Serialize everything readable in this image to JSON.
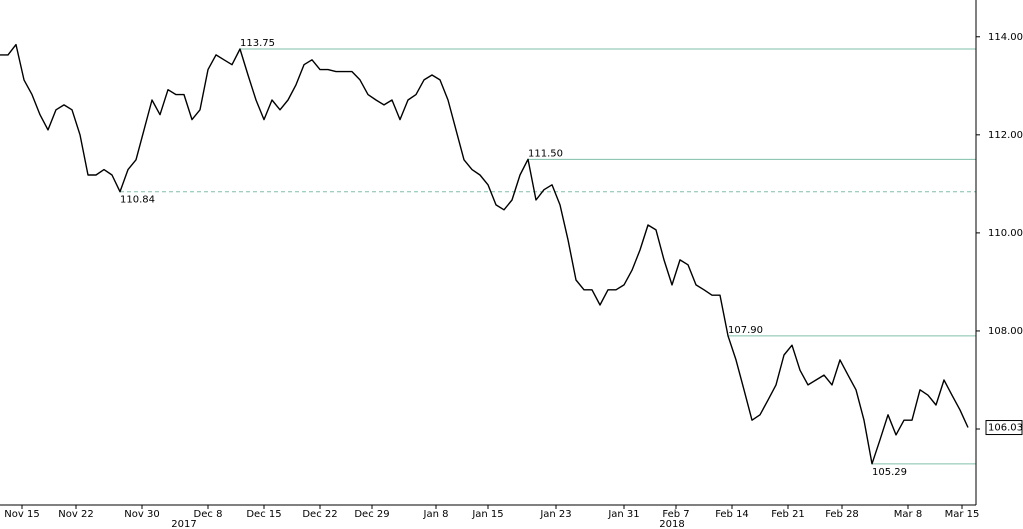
{
  "chart_data": {
    "type": "line",
    "series": [
      {
        "color": "#000000",
        "x": [
          0,
          1,
          2,
          3,
          4,
          5,
          6,
          7,
          8,
          9,
          10,
          11,
          12,
          13,
          14,
          15,
          16,
          17,
          18,
          19,
          20,
          21,
          22,
          23,
          24,
          25,
          26,
          27,
          28,
          29,
          30,
          31,
          32,
          33,
          34,
          35,
          36,
          37,
          38,
          39,
          40,
          41,
          42,
          43,
          44,
          45,
          46,
          47,
          48,
          49,
          50,
          51,
          52,
          53,
          54,
          55,
          56,
          57,
          58,
          59,
          60,
          61,
          62,
          63,
          64,
          65,
          66,
          67,
          68,
          69,
          70,
          71,
          72,
          73,
          74,
          75,
          76,
          77,
          78,
          79,
          80,
          81,
          82,
          83,
          84,
          85,
          86,
          87,
          88,
          89,
          90,
          91,
          92,
          93,
          94,
          95,
          96,
          97,
          98,
          99,
          100,
          101,
          102,
          103,
          104,
          105,
          106,
          107,
          108,
          109,
          110,
          111,
          112,
          113,
          114,
          115,
          116,
          117,
          118,
          119,
          120,
          121
        ],
        "values": [
          113.63,
          113.63,
          113.84,
          113.12,
          112.82,
          112.41,
          112.1,
          112.51,
          112.61,
          112.51,
          112.0,
          111.18,
          111.18,
          111.29,
          111.18,
          110.84,
          111.29,
          111.49,
          112.1,
          112.71,
          112.41,
          112.92,
          112.82,
          112.82,
          112.31,
          112.51,
          113.33,
          113.63,
          113.53,
          113.43,
          113.75,
          113.22,
          112.71,
          112.31,
          112.71,
          112.51,
          112.71,
          113.02,
          113.43,
          113.53,
          113.33,
          113.33,
          113.29,
          113.29,
          113.29,
          113.12,
          112.82,
          112.71,
          112.61,
          112.71,
          112.31,
          112.71,
          112.82,
          113.12,
          113.22,
          113.12,
          112.71,
          112.1,
          111.49,
          111.29,
          111.18,
          110.98,
          110.57,
          110.47,
          110.67,
          111.18,
          111.5,
          110.67,
          110.88,
          110.98,
          110.57,
          109.86,
          109.04,
          108.84,
          108.84,
          108.53,
          108.84,
          108.84,
          108.94,
          109.24,
          109.65,
          110.16,
          110.06,
          109.45,
          108.94,
          109.45,
          109.35,
          108.94,
          108.84,
          108.73,
          108.73,
          107.9,
          107.41,
          106.8,
          106.18,
          106.29,
          106.59,
          106.9,
          107.51,
          107.71,
          107.2,
          106.9,
          107.0,
          107.1,
          106.9,
          107.41,
          107.1,
          106.8,
          106.18,
          105.29,
          105.78,
          106.29,
          105.88,
          106.18,
          106.18,
          106.8,
          106.69,
          106.49,
          107.0,
          106.69,
          106.39,
          106.03
        ]
      }
    ],
    "xlim": [
      0,
      122
    ],
    "xticks": [
      {
        "value": 2.75,
        "label": "Nov 15"
      },
      {
        "value": 9.5,
        "label": "Nov 22"
      },
      {
        "value": 17.75,
        "label": "Nov 30"
      },
      {
        "value": 26,
        "label": "Dec 8"
      },
      {
        "value": 33,
        "label": "Dec 15"
      },
      {
        "value": 40,
        "label": "Dec 22"
      },
      {
        "value": 46.5,
        "label": "Dec 29"
      },
      {
        "value": 54.5,
        "label": "Jan 8"
      },
      {
        "value": 61,
        "label": "Jan 15"
      },
      {
        "value": 69.5,
        "label": "Jan 23"
      },
      {
        "value": 78,
        "label": "Jan 31"
      },
      {
        "value": 84.5,
        "label": "Feb 7"
      },
      {
        "value": 91.5,
        "label": "Feb 14"
      },
      {
        "value": 98.5,
        "label": "Feb 21"
      },
      {
        "value": 105.25,
        "label": "Feb 28"
      },
      {
        "value": 113.5,
        "label": "Mar 8"
      },
      {
        "value": 120.25,
        "label": "Mar 15"
      }
    ],
    "year_labels": [
      {
        "x": 23,
        "text": "2017"
      },
      {
        "x": 84,
        "text": "2018"
      }
    ],
    "ylim": [
      104.45,
      114.75
    ],
    "yticks": [
      {
        "value": 106,
        "label": "106.00"
      },
      {
        "value": 108,
        "label": "108.00"
      },
      {
        "value": 110,
        "label": "110.00"
      },
      {
        "value": 112,
        "label": "112.00"
      },
      {
        "value": 114,
        "label": "114.00"
      }
    ],
    "annotations": [
      {
        "x": 30,
        "y": {
          "value": 113.75,
          "label": "113.75"
        },
        "dashed": false,
        "label_side": "above"
      },
      {
        "x": 66,
        "y": {
          "value": 111.5,
          "label": "111.50"
        },
        "dashed": false,
        "label_side": "above"
      },
      {
        "x": 15,
        "y": {
          "value": 110.84,
          "label": "110.84"
        },
        "dashed": true,
        "label_side": "below"
      },
      {
        "x": 91,
        "y": {
          "value": 107.9,
          "label": "107.90"
        },
        "dashed": false,
        "label_side": "above"
      },
      {
        "x": 109,
        "y": {
          "value": 105.29,
          "label": "105.29"
        },
        "dashed": false,
        "label_side": "below"
      }
    ],
    "annotation_color": "#7fbfaa",
    "last_price": {
      "value": 106.03,
      "label": "106.03"
    }
  }
}
